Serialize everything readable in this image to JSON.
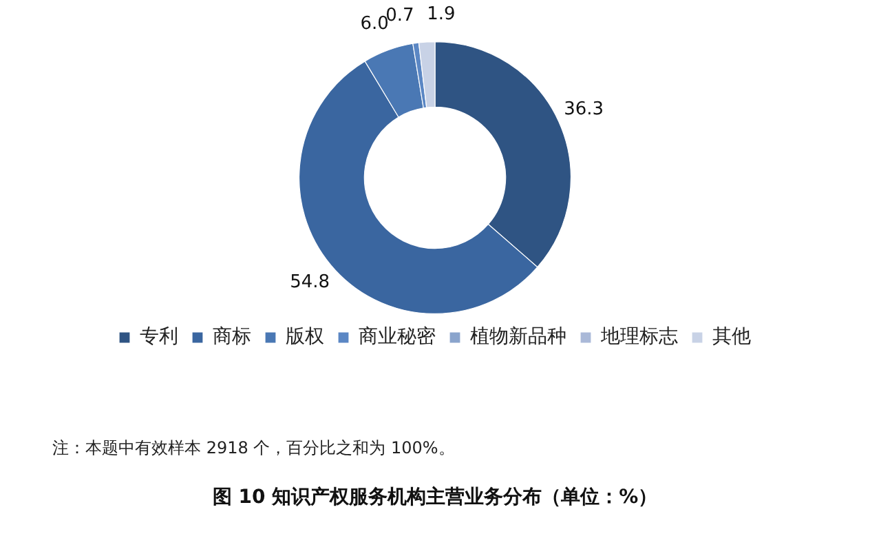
{
  "chart_data": {
    "type": "donut",
    "title": "图 10 知识产权服务机构主营业务分布（单位：%）",
    "categories": [
      "专利",
      "商标",
      "版权",
      "商业秘密",
      "植物新品种",
      "地理标志",
      "其他"
    ],
    "values": [
      36.3,
      54.8,
      6.0,
      0.7,
      0,
      0,
      1.9
    ],
    "value_labels": [
      "36.3",
      "54.8",
      "6.0",
      "0.7",
      null,
      null,
      "1.9"
    ],
    "colors": [
      "#2f5483",
      "#3a66a0",
      "#4a78b4",
      "#5b87c4",
      "#8aa4cc",
      "#aab9d8",
      "#c8d2e6"
    ],
    "legend": "bottom",
    "annotations": [
      "注：本题中有效样本 2918 个，百分比之和为 100%。"
    ]
  }
}
